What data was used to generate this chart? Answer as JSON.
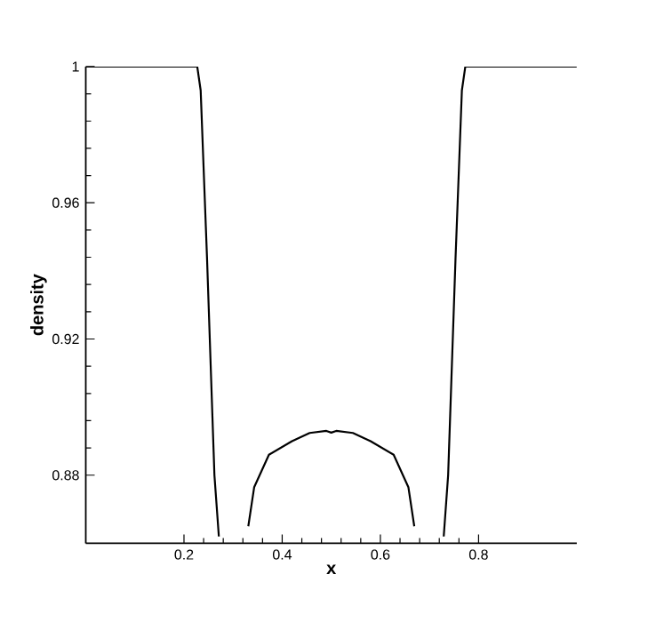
{
  "chart_data": {
    "type": "line",
    "xlabel": "x",
    "ylabel": "density",
    "color": "#000000",
    "x": [
      0,
      0.1,
      0.2,
      0.227,
      0.234,
      0.247,
      0.262,
      0.271,
      0.28,
      0.29,
      0.31,
      0.331,
      0.343,
      0.373,
      0.42,
      0.456,
      0.49,
      0.5,
      0.51,
      0.544,
      0.58,
      0.627,
      0.657,
      0.669,
      0.69,
      0.71,
      0.72,
      0.729,
      0.738,
      0.753,
      0.766,
      0.773,
      0.9,
      1
    ],
    "values": [
      1,
      1,
      1,
      1,
      0.993,
      0.9435,
      0.88,
      0.862,
      null,
      null,
      null,
      0.865,
      0.8765,
      0.886,
      0.89,
      0.8924,
      0.893,
      0.8925,
      0.893,
      0.8924,
      0.89,
      0.886,
      0.8765,
      0.865,
      null,
      null,
      null,
      0.862,
      0.88,
      0.9435,
      0.993,
      1,
      1,
      1
    ],
    "xlim": [
      0,
      1
    ],
    "ylim": [
      0.86,
      1
    ],
    "xticks": [
      0.2,
      0.4,
      0.6,
      0.8
    ],
    "yticks": [
      0.88,
      0.92,
      0.96,
      1
    ],
    "grid": false,
    "marker": "none",
    "line_style": "solid"
  }
}
